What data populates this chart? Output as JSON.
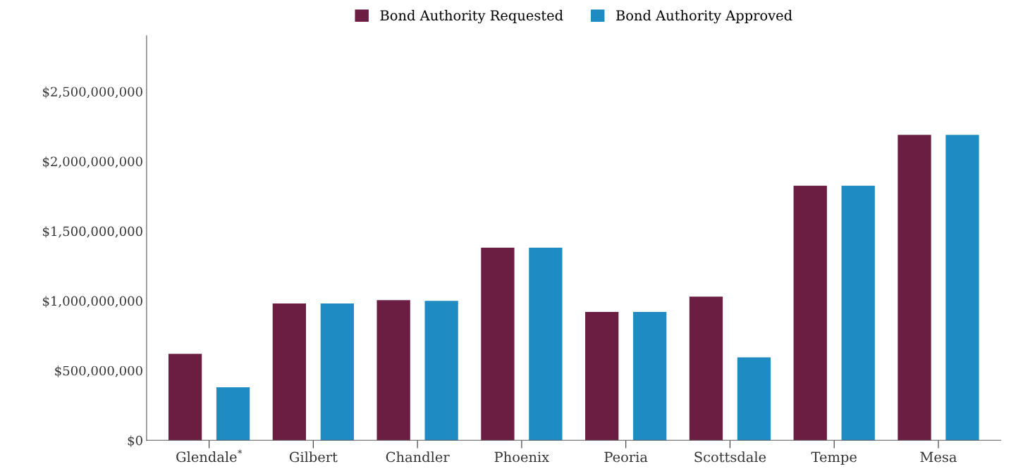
{
  "chart_data": {
    "type": "bar",
    "categories": [
      "Glendale$^{*}$",
      "Gilbert",
      "Chandler",
      "Phoenix",
      "Peoria",
      "Scottsdale",
      "Tempe",
      "Mesa"
    ],
    "series": [
      {
        "name": "Bond Authority Requested",
        "color": "#6b1d42",
        "values": [
          620000000,
          980000000,
          1005000000,
          1380000000,
          920000000,
          1030000000,
          1825000000,
          2190000000
        ]
      },
      {
        "name": "Bond Authority Approved",
        "color": "#1f8bc3",
        "values": [
          380000000,
          980000000,
          1000000000,
          1380000000,
          920000000,
          595000000,
          1825000000,
          2190000000
        ]
      }
    ],
    "ylim": [
      0,
      2900000000
    ],
    "yticks": [
      {
        "value": 0,
        "label": "$0"
      },
      {
        "value": 500000000,
        "label": "$500,000,000"
      },
      {
        "value": 1000000000,
        "label": "$1,000,000,000"
      },
      {
        "value": 1500000000,
        "label": "$1,500,000,000"
      },
      {
        "value": 2000000000,
        "label": "$2,000,000,000"
      },
      {
        "value": 2500000000,
        "label": "$2,500,000,000"
      }
    ],
    "grid": false,
    "legend": "top"
  }
}
